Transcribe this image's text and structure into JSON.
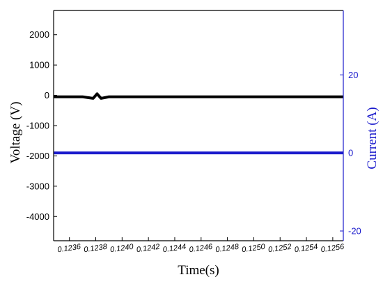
{
  "chart_data": {
    "type": "line",
    "xlabel": "Time(s)",
    "ylabel": "Voltage (V)",
    "y2label": "Current (A)",
    "xlim": [
      0.12348,
      0.12568
    ],
    "ylim": [
      -4800,
      2800
    ],
    "y2lim": [
      -22.5,
      36.5
    ],
    "x_ticks": [
      "0.1236",
      "0.1238",
      "0.1240",
      "0.1242",
      "0.1244",
      "0.1246",
      "0.1248",
      "0.1250",
      "0.1252",
      "0.1254",
      "0.1256"
    ],
    "y_ticks": [
      "2000",
      "1000",
      "0",
      "-1000",
      "-2000",
      "-3000",
      "-4000"
    ],
    "y2_ticks": [
      "20",
      "0",
      "-20"
    ],
    "grid": false,
    "colors": {
      "voltage": "#000000",
      "current": "#1a1acc",
      "axis_left": "#000000",
      "axis_right": "#1a1acc"
    },
    "series": [
      {
        "axis": "left",
        "x": [
          0.12348,
          0.1236,
          0.1237,
          0.12378,
          0.12381,
          0.12384,
          0.1239,
          0.124,
          0.1242,
          0.1244,
          0.1246,
          0.1248,
          0.125,
          0.1252,
          0.1254,
          0.1256,
          0.12568
        ],
        "values": [
          -50,
          -50,
          -50,
          -100,
          50,
          -100,
          -50,
          -50,
          -50,
          -50,
          -50,
          -50,
          -50,
          -50,
          -50,
          -50,
          -50
        ]
      },
      {
        "axis": "right",
        "x": [
          0.12348,
          0.1236,
          0.1238,
          0.124,
          0.1242,
          0.1244,
          0.1246,
          0.1248,
          0.125,
          0.1252,
          0.1254,
          0.1256,
          0.12568
        ],
        "values": [
          0,
          0,
          0,
          0,
          0,
          0,
          0,
          0,
          0,
          0,
          0,
          0,
          0
        ]
      }
    ]
  }
}
